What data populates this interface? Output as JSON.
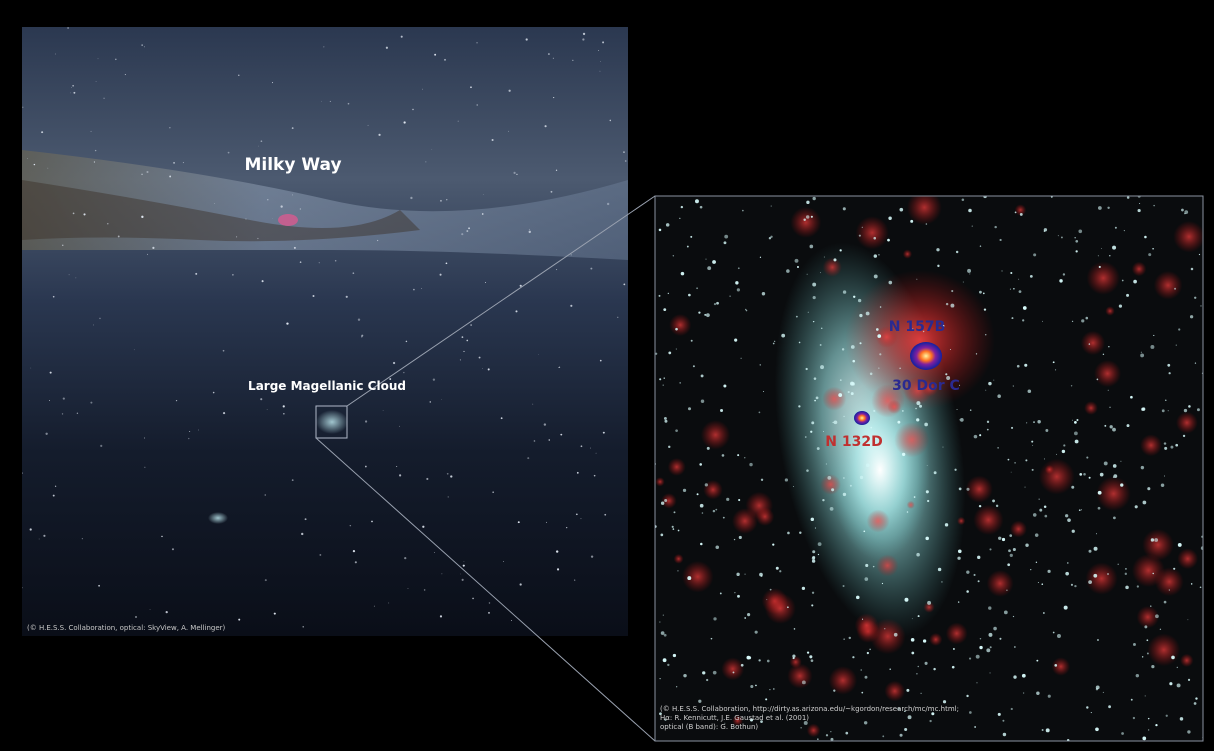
{
  "left_panel": {
    "labels": {
      "milky_way": "Milky Way",
      "lmc": "Large Magellanic Cloud"
    },
    "credit": "(© H.E.S.S. Collaboration, optical: SkyView, A. Mellinger)"
  },
  "right_panel": {
    "labels": {
      "n157b": "N 157B",
      "dor": "30 Dor C",
      "n132d": "N 132D"
    },
    "credit_lines": [
      "(© H.E.S.S. Collaboration, http://dirty.as.arizona.edu/~kgordon/research/mc/mc.html;",
      "Hα: R. Kennicutt, J.E. Gaustad et al. (2001)",
      "optical (B band): G. Bothun)"
    ]
  }
}
